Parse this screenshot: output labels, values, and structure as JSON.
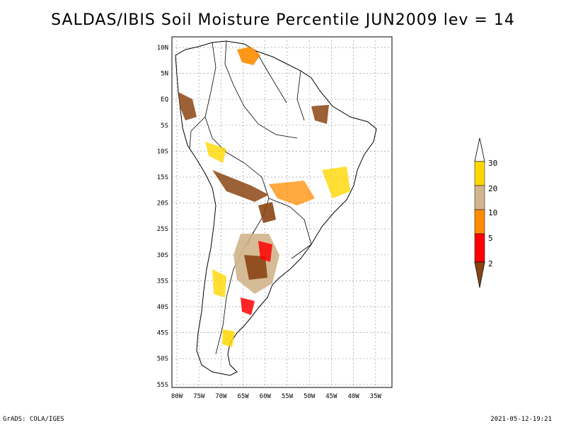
{
  "title": "SALDAS/IBIS Soil Moisture Percentile JUN2009 lev = 14",
  "map": {
    "lat_labels": [
      "10N",
      "5N",
      "EQ",
      "5S",
      "10S",
      "15S",
      "20S",
      "25S",
      "30S",
      "35S",
      "40S",
      "45S",
      "50S",
      "55S"
    ],
    "lon_labels": [
      "80W",
      "75W",
      "70W",
      "65W",
      "60W",
      "55W",
      "50W",
      "45W",
      "40W",
      "35W"
    ],
    "colors": {
      "brown": "#8b4513",
      "red": "#ff0000",
      "orange": "#ff8c00",
      "tan": "#d2b48c",
      "gold": "#ffd700",
      "white": "#ffffff"
    }
  },
  "legend": {
    "labels": [
      "2",
      "5",
      "10",
      "20",
      "30"
    ]
  },
  "footer": {
    "left": "GrADS: COLA/IGES",
    "right": "2021-05-12-19:21"
  }
}
